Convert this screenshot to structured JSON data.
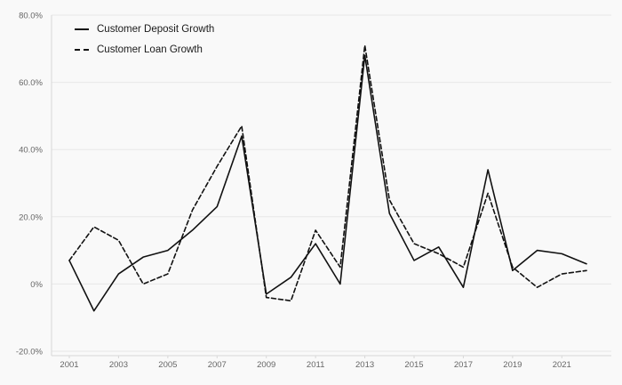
{
  "chart_data": {
    "type": "line",
    "x": [
      2001,
      2002,
      2003,
      2004,
      2005,
      2006,
      2007,
      2008,
      2009,
      2010,
      2011,
      2012,
      2013,
      2014,
      2015,
      2016,
      2017,
      2018,
      2019,
      2020,
      2021,
      2022
    ],
    "series": [
      {
        "name": "Customer Deposit Growth",
        "style": "solid",
        "values": [
          7,
          -8,
          3,
          8,
          10,
          16,
          23,
          44,
          -3,
          2,
          12,
          0,
          68,
          21,
          7,
          11,
          -1,
          34,
          4,
          10,
          9,
          6
        ]
      },
      {
        "name": "Customer Loan Growth",
        "style": "dashed",
        "values": [
          7,
          17,
          13,
          0,
          3,
          22,
          35,
          47,
          -4,
          -5,
          16,
          5,
          71,
          25,
          12,
          9,
          5,
          27,
          5,
          -1,
          3,
          4
        ]
      }
    ],
    "title": "",
    "xlabel": "",
    "ylabel": "",
    "ylim": [
      -20,
      80
    ],
    "yticks": [
      80,
      60,
      40,
      20,
      0,
      -20
    ],
    "ytick_labels": [
      "80.0%",
      "60.0%",
      "40.0%",
      "20.0%",
      "0%",
      "-20.0%"
    ],
    "xticks": [
      2001,
      2003,
      2005,
      2007,
      2009,
      2011,
      2013,
      2015,
      2017,
      2019,
      2021
    ],
    "grid": true,
    "legend_position": "top-left",
    "colors": {
      "line": "#111111",
      "grid": "#e8e8e8",
      "axis": "#d8d8d8",
      "label": "#666666",
      "background": "#f9f9f9"
    }
  }
}
